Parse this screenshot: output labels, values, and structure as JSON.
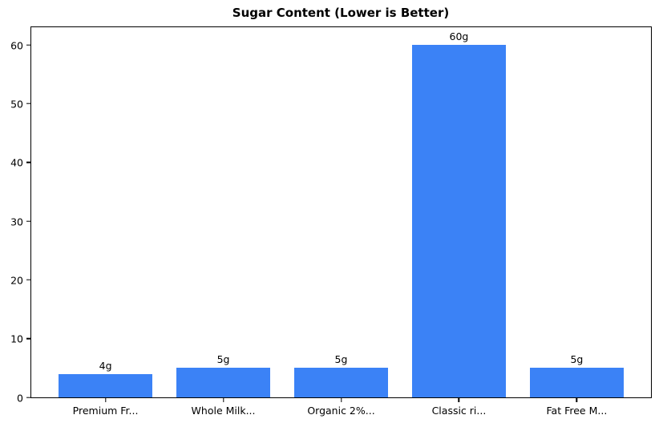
{
  "chart_data": {
    "type": "bar",
    "title": "Sugar Content (Lower is Better)",
    "categories": [
      "Premium Fr...",
      "Whole Milk...",
      "Organic 2%...",
      "Classic ri...",
      "Fat Free M..."
    ],
    "values": [
      4,
      5,
      5,
      60,
      5
    ],
    "bar_labels": [
      "4g",
      "5g",
      "5g",
      "60g",
      "5g"
    ],
    "xlabel": "",
    "ylabel": "",
    "y_ticks": [
      0,
      10,
      20,
      30,
      40,
      50,
      60
    ],
    "ylim": [
      0,
      63
    ],
    "xlim": [
      -0.63,
      4.63
    ],
    "bar_width": 0.8,
    "bar_color": "#3b82f6",
    "grid": false,
    "legend": "none"
  }
}
